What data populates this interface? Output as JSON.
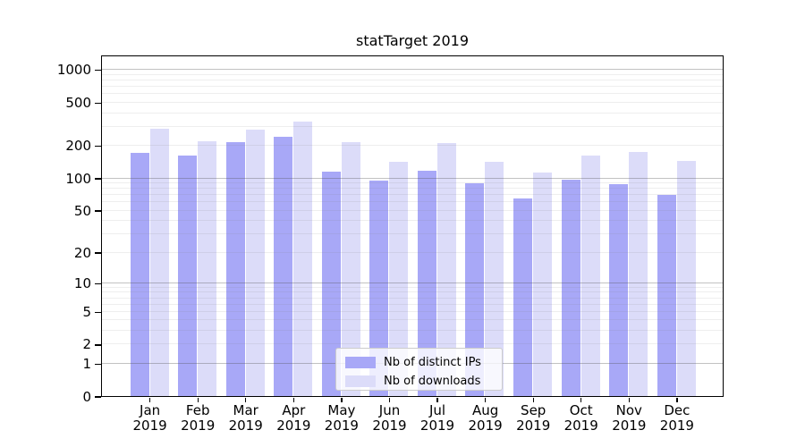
{
  "chart_data": {
    "type": "bar",
    "title": "statTarget 2019",
    "categories": [
      "Jan",
      "Feb",
      "Mar",
      "Apr",
      "May",
      "Jun",
      "Jul",
      "Aug",
      "Sep",
      "Oct",
      "Nov",
      "Dec"
    ],
    "category_year": "2019",
    "series": [
      {
        "name": "Nb of distinct IPs",
        "color": "#a8a8f7",
        "values": [
          170,
          160,
          215,
          240,
          115,
          95,
          117,
          90,
          65,
          96,
          88,
          70
        ]
      },
      {
        "name": "Nb of downloads",
        "color": "#dcdcf9",
        "values": [
          285,
          220,
          280,
          330,
          215,
          140,
          210,
          140,
          112,
          160,
          175,
          143
        ]
      }
    ],
    "xlabel": "",
    "ylabel": "",
    "yscale": "log1p",
    "ylim": [
      0,
      1375
    ],
    "yticks": [
      0,
      1,
      2,
      5,
      10,
      20,
      50,
      100,
      200,
      500,
      1000
    ],
    "major_gridlines": [
      1,
      10,
      100,
      1000
    ],
    "minor_gridlines": [
      2,
      3,
      4,
      5,
      6,
      7,
      8,
      9,
      20,
      30,
      40,
      50,
      60,
      70,
      80,
      90,
      200,
      300,
      400,
      500,
      600,
      700,
      800,
      900
    ],
    "grid": true,
    "legend": {
      "position": "lower center",
      "entries": [
        "Nb of distinct IPs",
        "Nb of downloads"
      ]
    }
  },
  "colors": {
    "axis": "#000000",
    "grid_major": "rgba(80,80,80,0.35)",
    "grid_minor": "rgba(120,120,120,0.13)",
    "legend_border": "#cccccc"
  }
}
